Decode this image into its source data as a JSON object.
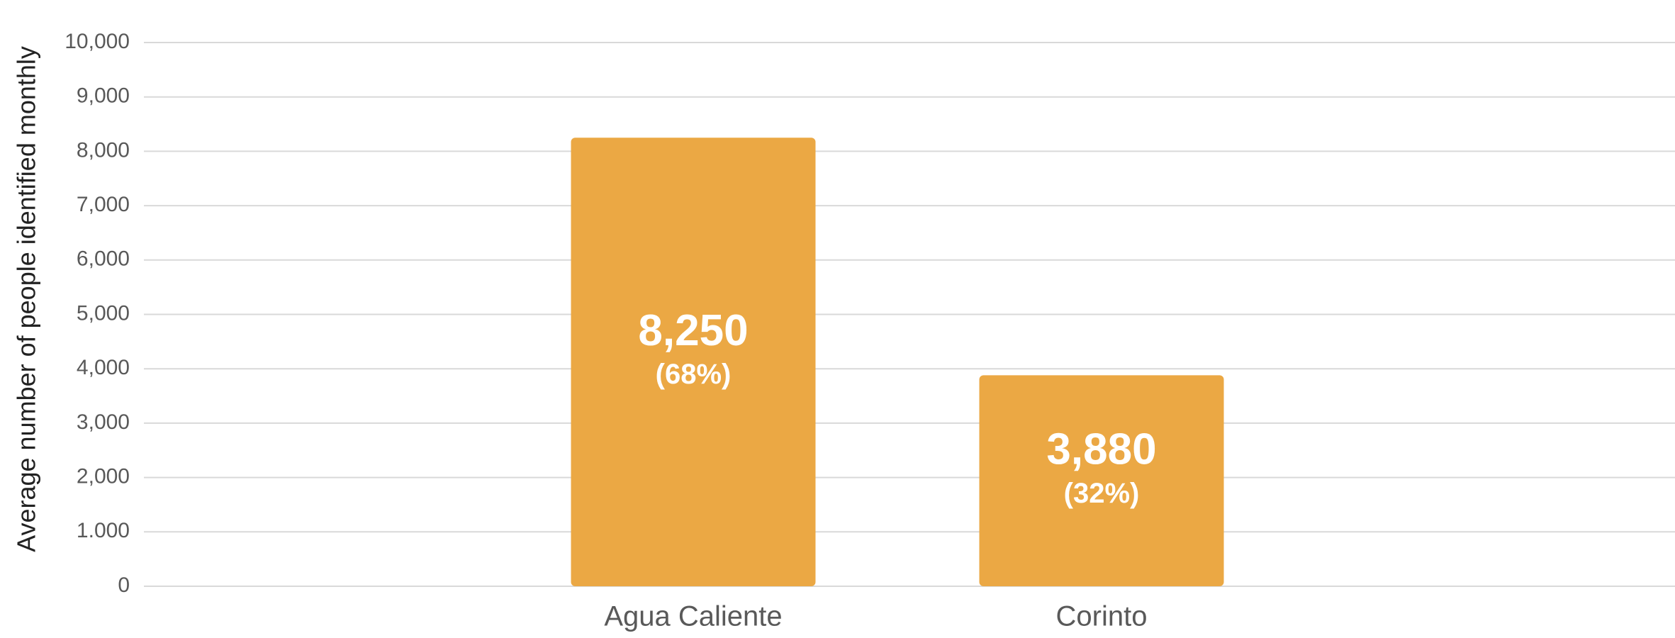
{
  "chart_data": {
    "type": "bar",
    "y_label": "Average number of people identified monthly",
    "categories": [
      "Agua Caliente",
      "Corinto"
    ],
    "values": [
      8250,
      3880
    ],
    "value_labels": [
      "8,250",
      "3,880"
    ],
    "percent_labels": [
      "(68%)",
      "(32%)"
    ],
    "color": "#eba844",
    "ylim": [
      0,
      10000
    ],
    "yticks": [
      0,
      {
        "value": 1000,
        "label": "1.000"
      },
      {
        "value": 2000,
        "label": "2,000"
      },
      {
        "value": 3000,
        "label": "3,000"
      },
      {
        "value": 4000,
        "label": "4,000"
      },
      {
        "value": 5000,
        "label": "5,000"
      },
      {
        "value": 6000,
        "label": "6,000"
      },
      {
        "value": 7000,
        "label": "7,000"
      },
      {
        "value": 8000,
        "label": "8,000"
      },
      {
        "value": 9000,
        "label": "9,000"
      },
      {
        "value": 10000,
        "label": "10,000"
      }
    ],
    "grid": true
  }
}
